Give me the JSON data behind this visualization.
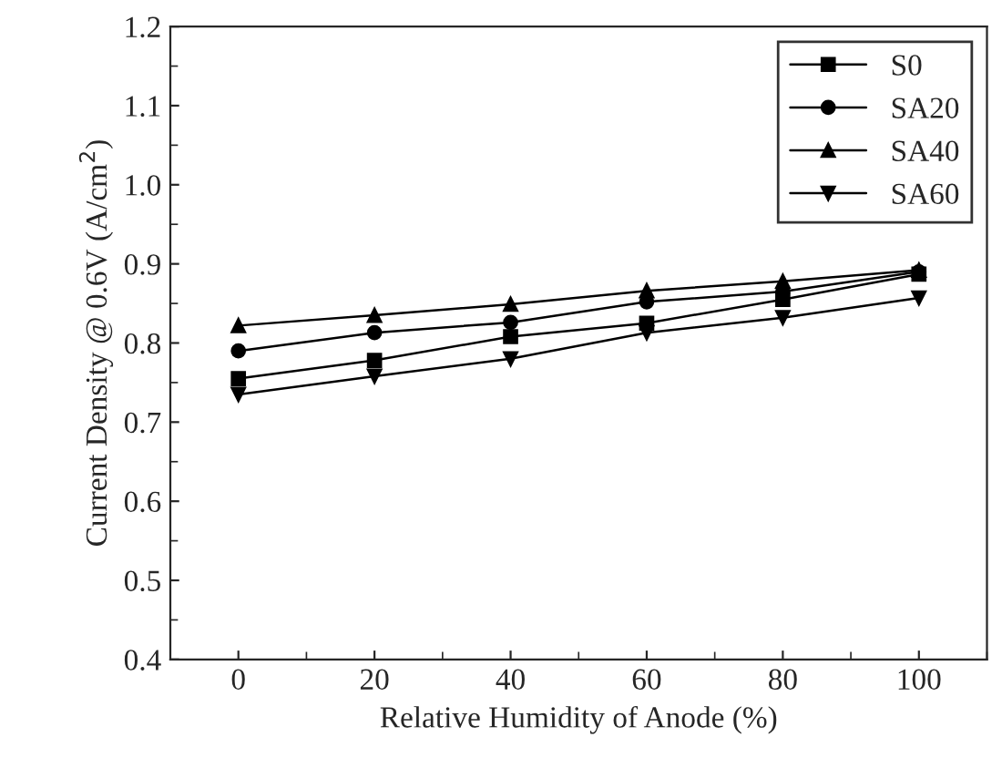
{
  "chart_data": {
    "type": "line",
    "xlabel": "Relative Humidity of Anode (%)",
    "ylabel": "Current Density @ 0.6V (A/cm$^{2}$)",
    "x": [
      0,
      20,
      40,
      60,
      80,
      100
    ],
    "series": [
      {
        "name": "S0",
        "color": "#000000",
        "marker": "square",
        "values": [
          0.755,
          0.778,
          0.808,
          0.825,
          0.855,
          0.887
        ]
      },
      {
        "name": "SA20",
        "color": "#000000",
        "marker": "circle",
        "values": [
          0.79,
          0.813,
          0.826,
          0.852,
          0.865,
          0.89
        ]
      },
      {
        "name": "SA40",
        "color": "#000000",
        "marker": "triangle",
        "values": [
          0.822,
          0.835,
          0.849,
          0.866,
          0.878,
          0.892
        ]
      },
      {
        "name": "SA60",
        "color": "#000000",
        "marker": "triangle_down",
        "values": [
          0.735,
          0.758,
          0.78,
          0.813,
          0.832,
          0.857
        ]
      }
    ],
    "xlim": [
      -10,
      110
    ],
    "xticks": [
      0,
      20,
      40,
      60,
      80,
      100
    ],
    "ylim": [
      0.4,
      1.2
    ],
    "yticks": [
      0.4,
      0.5,
      0.6,
      0.7,
      0.8,
      0.9,
      {
        "value": 1,
        "label": "1.0"
      },
      1.1,
      1.2
    ],
    "grid": false,
    "legend": "top right",
    "line_style": "solid"
  }
}
